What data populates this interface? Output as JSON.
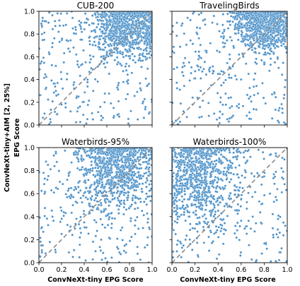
{
  "figure": {
    "xlabel": "ConvNeXt-tiny EPG Score",
    "ylabel_line1": "ConvNeXt-tiny+AIM [2, 25%]",
    "ylabel_line2": "EPG Score"
  },
  "colors": {
    "point": "#4a90c8",
    "point_edge": "#ffffff",
    "diagonal": "#8a8a8a"
  },
  "chart_data": [
    {
      "type": "scatter",
      "title": "CUB-200",
      "xlim": [
        0.0,
        1.0
      ],
      "ylim": [
        0.0,
        1.0
      ],
      "xticks": [
        "0.0",
        "0.2",
        "0.4",
        "0.6",
        "0.8",
        "1.0"
      ],
      "yticks": [
        "0.0",
        "0.2",
        "0.4",
        "0.6",
        "0.8",
        "1.0"
      ],
      "diagonal": true,
      "cluster": {
        "x_mean": 0.78,
        "y_mean": 0.85,
        "x_sd": 0.16,
        "y_sd": 0.14
      },
      "points": [
        [
          0.05,
          0.1
        ],
        [
          0.1,
          0.05
        ],
        [
          0.15,
          0.3
        ],
        [
          0.2,
          0.18
        ],
        [
          0.22,
          0.55
        ],
        [
          0.25,
          0.45
        ],
        [
          0.3,
          0.85
        ],
        [
          0.33,
          0.62
        ],
        [
          0.35,
          0.25
        ],
        [
          0.38,
          0.75
        ],
        [
          0.4,
          0.4
        ],
        [
          0.42,
          0.9
        ],
        [
          0.45,
          0.55
        ],
        [
          0.48,
          0.3
        ],
        [
          0.5,
          0.7
        ],
        [
          0.52,
          0.95
        ],
        [
          0.55,
          0.6
        ],
        [
          0.58,
          0.2
        ],
        [
          0.6,
          0.88
        ],
        [
          0.62,
          0.45
        ],
        [
          0.65,
          0.78
        ],
        [
          0.68,
          0.97
        ],
        [
          0.7,
          0.35
        ],
        [
          0.72,
          0.82
        ],
        [
          0.75,
          0.93
        ],
        [
          0.78,
          0.65
        ],
        [
          0.8,
          0.98
        ],
        [
          0.82,
          0.88
        ],
        [
          0.85,
          0.75
        ],
        [
          0.88,
          0.96
        ],
        [
          0.9,
          0.85
        ],
        [
          0.92,
          0.99
        ],
        [
          0.95,
          0.92
        ],
        [
          0.97,
          0.97
        ],
        [
          0.99,
          0.95
        ],
        [
          0.12,
          0.72
        ],
        [
          0.18,
          0.92
        ],
        [
          0.28,
          0.12
        ],
        [
          0.55,
          0.08
        ],
        [
          0.66,
          0.15
        ]
      ]
    },
    {
      "type": "scatter",
      "title": "TravelingBirds",
      "xlim": [
        0.0,
        1.0
      ],
      "ylim": [
        0.0,
        1.0
      ],
      "xticks": [
        "0.0",
        "0.2",
        "0.4",
        "0.6",
        "0.8",
        "1.0"
      ],
      "yticks": [
        "0.0",
        "0.2",
        "0.4",
        "0.6",
        "0.8",
        "1.0"
      ],
      "diagonal": true,
      "cluster": {
        "x_mean": 0.8,
        "y_mean": 0.88,
        "x_sd": 0.13,
        "y_sd": 0.11
      },
      "points": [
        [
          0.1,
          0.12
        ],
        [
          0.15,
          0.55
        ],
        [
          0.22,
          0.8
        ],
        [
          0.25,
          0.3
        ],
        [
          0.3,
          0.65
        ],
        [
          0.35,
          0.9
        ],
        [
          0.4,
          0.45
        ],
        [
          0.45,
          0.78
        ],
        [
          0.5,
          0.62
        ],
        [
          0.55,
          0.95
        ],
        [
          0.6,
          0.4
        ],
        [
          0.65,
          0.85
        ],
        [
          0.7,
          0.7
        ],
        [
          0.75,
          0.97
        ],
        [
          0.8,
          0.55
        ],
        [
          0.85,
          0.92
        ],
        [
          0.9,
          0.98
        ],
        [
          0.95,
          0.88
        ],
        [
          0.98,
          0.99
        ],
        [
          0.42,
          0.2
        ],
        [
          0.58,
          0.15
        ],
        [
          0.68,
          0.25
        ],
        [
          0.32,
          0.08
        ],
        [
          0.48,
          0.05
        ]
      ]
    },
    {
      "type": "scatter",
      "title": "Waterbirds-95%",
      "xlim": [
        0.0,
        1.0
      ],
      "ylim": [
        0.0,
        1.0
      ],
      "xticks": [
        "0.0",
        "0.2",
        "0.4",
        "0.6",
        "0.8",
        "1.0"
      ],
      "yticks": [
        "0.0",
        "0.2",
        "0.4",
        "0.6",
        "0.8",
        "1.0"
      ],
      "diagonal": true,
      "cluster": {
        "x_mean": 0.68,
        "y_mean": 0.82,
        "x_sd": 0.16,
        "y_sd": 0.17
      },
      "points": [
        [
          0.02,
          0.15
        ],
        [
          0.05,
          0.6
        ],
        [
          0.08,
          0.85
        ],
        [
          0.12,
          0.4
        ],
        [
          0.15,
          0.95
        ],
        [
          0.2,
          0.25
        ],
        [
          0.25,
          0.72
        ],
        [
          0.3,
          0.5
        ],
        [
          0.35,
          0.88
        ],
        [
          0.4,
          0.35
        ],
        [
          0.45,
          0.65
        ],
        [
          0.5,
          0.92
        ],
        [
          0.55,
          0.2
        ],
        [
          0.6,
          0.78
        ],
        [
          0.65,
          0.55
        ],
        [
          0.7,
          0.97
        ],
        [
          0.75,
          0.42
        ],
        [
          0.8,
          0.85
        ],
        [
          0.85,
          0.7
        ],
        [
          0.9,
          0.95
        ],
        [
          0.95,
          0.6
        ],
        [
          0.98,
          0.98
        ],
        [
          0.3,
          0.05
        ],
        [
          0.5,
          0.1
        ],
        [
          0.7,
          0.12
        ],
        [
          0.85,
          0.25
        ]
      ]
    },
    {
      "type": "scatter",
      "title": "Waterbirds-100%",
      "xlim": [
        0.0,
        1.0
      ],
      "ylim": [
        0.0,
        1.0
      ],
      "xticks": [
        "0.0",
        "0.2",
        "0.4",
        "0.6",
        "0.8",
        "1.0"
      ],
      "yticks": [
        "0.0",
        "0.2",
        "0.4",
        "0.6",
        "0.8",
        "1.0"
      ],
      "diagonal": true,
      "cluster": {
        "x_mean": 0.22,
        "y_mean": 0.75,
        "x_sd": 0.18,
        "y_sd": 0.22
      },
      "points": [
        [
          0.02,
          0.98
        ],
        [
          0.05,
          0.4
        ],
        [
          0.08,
          0.75
        ],
        [
          0.1,
          0.15
        ],
        [
          0.12,
          0.9
        ],
        [
          0.15,
          0.55
        ],
        [
          0.18,
          0.3
        ],
        [
          0.2,
          0.85
        ],
        [
          0.25,
          0.65
        ],
        [
          0.3,
          0.95
        ],
        [
          0.35,
          0.45
        ],
        [
          0.4,
          0.8
        ],
        [
          0.45,
          0.25
        ],
        [
          0.5,
          0.7
        ],
        [
          0.55,
          0.92
        ],
        [
          0.6,
          0.55
        ],
        [
          0.65,
          0.88
        ],
        [
          0.7,
          0.4
        ],
        [
          0.75,
          0.98
        ],
        [
          0.8,
          0.75
        ],
        [
          0.85,
          0.6
        ],
        [
          0.9,
          0.95
        ],
        [
          0.95,
          0.82
        ],
        [
          0.92,
          0.38
        ],
        [
          0.88,
          0.22
        ],
        [
          0.78,
          0.08
        ]
      ]
    }
  ]
}
